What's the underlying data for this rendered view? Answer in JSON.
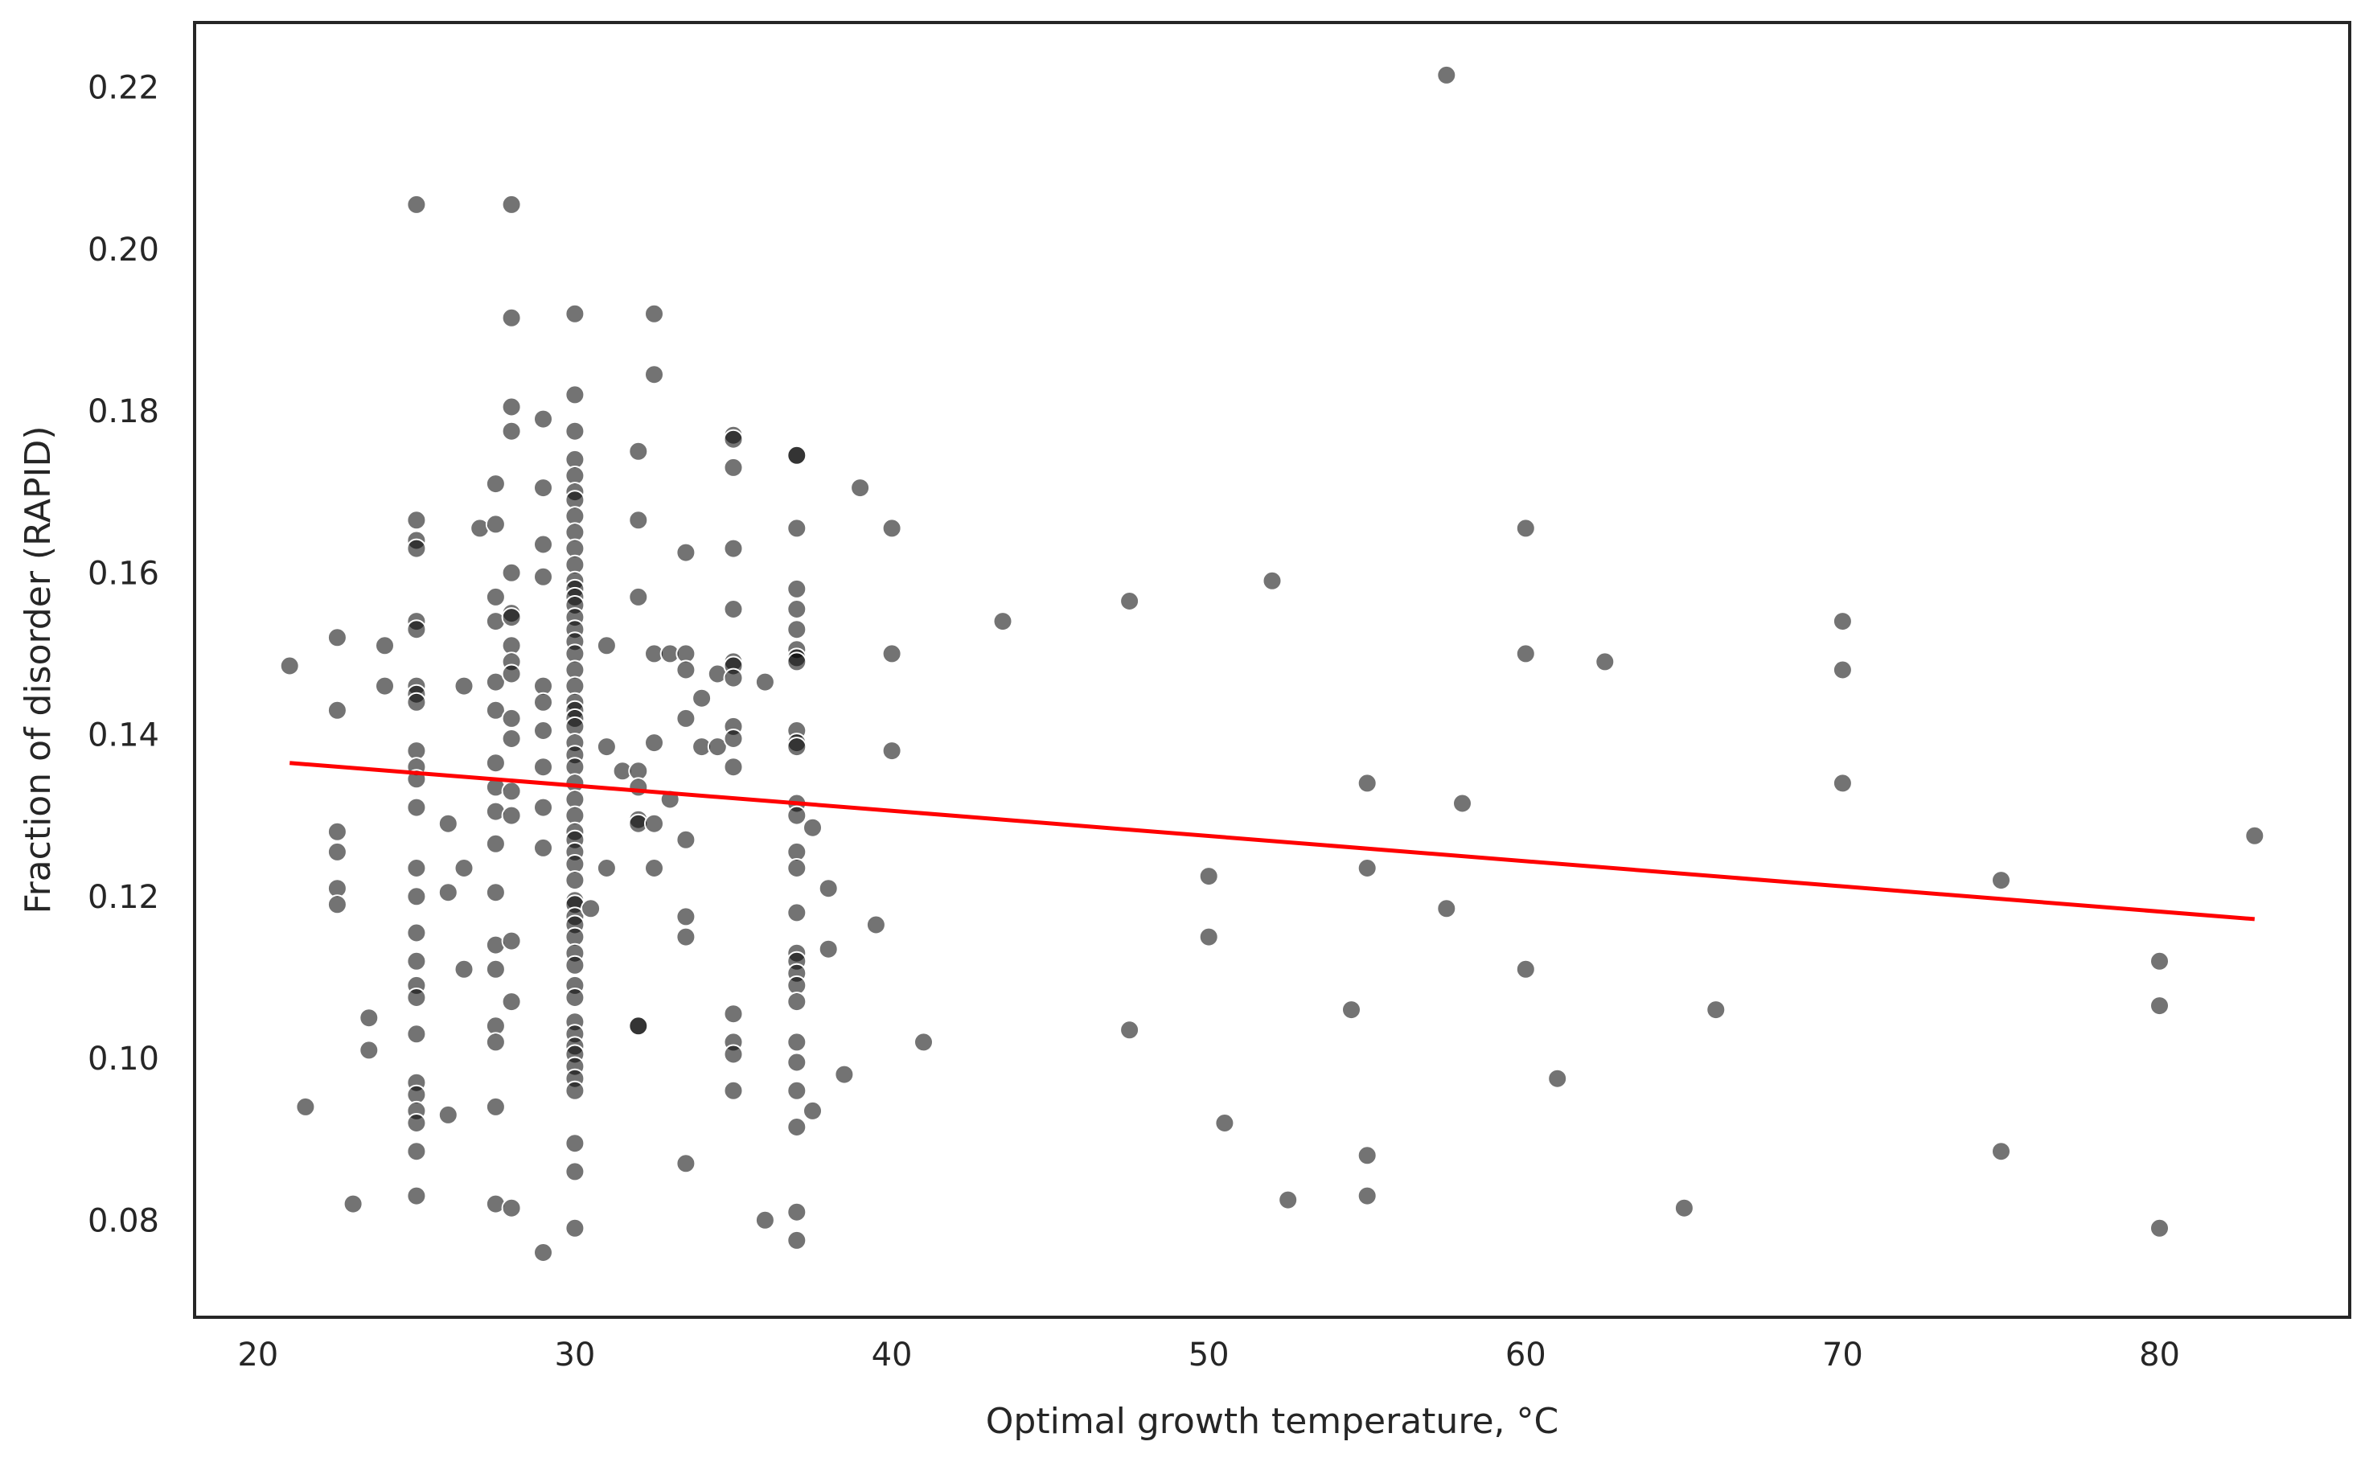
{
  "chart_data": {
    "type": "scatter",
    "title": "",
    "xlabel": "Optimal growth temperature, °C",
    "ylabel": "Fraction of disorder (RAPID)",
    "xlim": [
      18,
      86
    ],
    "ylim": [
      0.068,
      0.228
    ],
    "xticks": [
      20,
      30,
      40,
      50,
      60,
      70,
      80
    ],
    "yticks": [
      0.08,
      0.1,
      0.12,
      0.14,
      0.16,
      0.18,
      0.2,
      0.22
    ],
    "xtick_labels": [
      "20",
      "30",
      "40",
      "50",
      "60",
      "70",
      "80"
    ],
    "ytick_labels": [
      "0.08",
      "0.10",
      "0.12",
      "0.14",
      "0.16",
      "0.18",
      "0.20",
      "0.22"
    ],
    "grid": false,
    "legend": "none",
    "colors": {
      "points": "#000000",
      "regression": "#ff0000",
      "axes": "#262626"
    },
    "regression_line": {
      "x": [
        21,
        83
      ],
      "y": [
        0.1365,
        0.1172
      ]
    },
    "series": [
      {
        "points": [
          [
            21,
            0.1485
          ],
          [
            21.5,
            0.094
          ],
          [
            22.5,
            0.152
          ],
          [
            22.5,
            0.143
          ],
          [
            22.5,
            0.128
          ],
          [
            22.5,
            0.1255
          ],
          [
            22.5,
            0.121
          ],
          [
            22.5,
            0.119
          ],
          [
            23,
            0.082
          ],
          [
            23.5,
            0.105
          ],
          [
            23.5,
            0.101
          ],
          [
            24,
            0.151
          ],
          [
            24,
            0.146
          ],
          [
            25,
            0.2055
          ],
          [
            25,
            0.1665
          ],
          [
            25,
            0.164
          ],
          [
            25,
            0.163
          ],
          [
            25,
            0.154
          ],
          [
            25,
            0.153
          ],
          [
            25,
            0.146
          ],
          [
            25,
            0.145
          ],
          [
            25,
            0.144
          ],
          [
            25,
            0.138
          ],
          [
            25,
            0.136
          ],
          [
            25,
            0.1345
          ],
          [
            25,
            0.131
          ],
          [
            25,
            0.1235
          ],
          [
            25,
            0.12
          ],
          [
            25,
            0.1155
          ],
          [
            25,
            0.112
          ],
          [
            25,
            0.109
          ],
          [
            25,
            0.1075
          ],
          [
            25,
            0.103
          ],
          [
            25,
            0.097
          ],
          [
            25,
            0.0955
          ],
          [
            25,
            0.0935
          ],
          [
            25,
            0.092
          ],
          [
            25,
            0.0885
          ],
          [
            25,
            0.083
          ],
          [
            26,
            0.129
          ],
          [
            26,
            0.1205
          ],
          [
            26,
            0.093
          ],
          [
            26.5,
            0.146
          ],
          [
            26.5,
            0.1235
          ],
          [
            26.5,
            0.111
          ],
          [
            27,
            0.1655
          ],
          [
            27.5,
            0.171
          ],
          [
            27.5,
            0.166
          ],
          [
            27.5,
            0.157
          ],
          [
            27.5,
            0.154
          ],
          [
            27.5,
            0.1465
          ],
          [
            27.5,
            0.143
          ],
          [
            27.5,
            0.1365
          ],
          [
            27.5,
            0.1335
          ],
          [
            27.5,
            0.1305
          ],
          [
            27.5,
            0.1265
          ],
          [
            27.5,
            0.1205
          ],
          [
            27.5,
            0.114
          ],
          [
            27.5,
            0.111
          ],
          [
            27.5,
            0.104
          ],
          [
            27.5,
            0.102
          ],
          [
            27.5,
            0.094
          ],
          [
            27.5,
            0.082
          ],
          [
            28,
            0.2055
          ],
          [
            28,
            0.1915
          ],
          [
            28,
            0.1805
          ],
          [
            28,
            0.1775
          ],
          [
            28,
            0.16
          ],
          [
            28,
            0.155
          ],
          [
            28,
            0.1545
          ],
          [
            28,
            0.151
          ],
          [
            28,
            0.149
          ],
          [
            28,
            0.1475
          ],
          [
            28,
            0.142
          ],
          [
            28,
            0.1395
          ],
          [
            28,
            0.133
          ],
          [
            28,
            0.13
          ],
          [
            28,
            0.1145
          ],
          [
            28,
            0.107
          ],
          [
            28,
            0.0815
          ],
          [
            29,
            0.179
          ],
          [
            29,
            0.1705
          ],
          [
            29,
            0.1635
          ],
          [
            29,
            0.1595
          ],
          [
            29,
            0.146
          ],
          [
            29,
            0.144
          ],
          [
            29,
            0.1405
          ],
          [
            29,
            0.136
          ],
          [
            29,
            0.131
          ],
          [
            29,
            0.126
          ],
          [
            29,
            0.076
          ],
          [
            30,
            0.192
          ],
          [
            30,
            0.182
          ],
          [
            30,
            0.1775
          ],
          [
            30,
            0.174
          ],
          [
            30,
            0.172
          ],
          [
            30,
            0.17
          ],
          [
            30,
            0.169
          ],
          [
            30,
            0.167
          ],
          [
            30,
            0.165
          ],
          [
            30,
            0.163
          ],
          [
            30,
            0.161
          ],
          [
            30,
            0.159
          ],
          [
            30,
            0.158
          ],
          [
            30,
            0.157
          ],
          [
            30,
            0.156
          ],
          [
            30,
            0.1545
          ],
          [
            30,
            0.153
          ],
          [
            30,
            0.1515
          ],
          [
            30,
            0.15
          ],
          [
            30,
            0.148
          ],
          [
            30,
            0.146
          ],
          [
            30,
            0.144
          ],
          [
            30,
            0.143
          ],
          [
            30,
            0.142
          ],
          [
            30,
            0.141
          ],
          [
            30,
            0.139
          ],
          [
            30,
            0.1375
          ],
          [
            30,
            0.136
          ],
          [
            30,
            0.134
          ],
          [
            30,
            0.132
          ],
          [
            30,
            0.13
          ],
          [
            30,
            0.128
          ],
          [
            30,
            0.127
          ],
          [
            30,
            0.1255
          ],
          [
            30,
            0.124
          ],
          [
            30,
            0.122
          ],
          [
            30,
            0.1195
          ],
          [
            30,
            0.119
          ],
          [
            30,
            0.1175
          ],
          [
            30,
            0.1165
          ],
          [
            30,
            0.115
          ],
          [
            30,
            0.113
          ],
          [
            30,
            0.1115
          ],
          [
            30,
            0.109
          ],
          [
            30,
            0.1075
          ],
          [
            30,
            0.1045
          ],
          [
            30,
            0.103
          ],
          [
            30,
            0.1015
          ],
          [
            30,
            0.1005
          ],
          [
            30,
            0.099
          ],
          [
            30,
            0.0975
          ],
          [
            30,
            0.096
          ],
          [
            30,
            0.0895
          ],
          [
            30,
            0.086
          ],
          [
            30,
            0.079
          ],
          [
            30.5,
            0.1185
          ],
          [
            31,
            0.151
          ],
          [
            31,
            0.1385
          ],
          [
            31,
            0.1235
          ],
          [
            31.5,
            0.1355
          ],
          [
            32,
            0.175
          ],
          [
            32,
            0.1665
          ],
          [
            32,
            0.157
          ],
          [
            32,
            0.1355
          ],
          [
            32,
            0.1335
          ],
          [
            32,
            0.1295
          ],
          [
            32,
            0.129
          ],
          [
            32,
            0.104
          ],
          [
            32,
            0.104
          ],
          [
            32.5,
            0.192
          ],
          [
            32.5,
            0.1845
          ],
          [
            32.5,
            0.15
          ],
          [
            32.5,
            0.139
          ],
          [
            32.5,
            0.129
          ],
          [
            32.5,
            0.1235
          ],
          [
            33,
            0.15
          ],
          [
            33,
            0.132
          ],
          [
            33.5,
            0.1625
          ],
          [
            33.5,
            0.15
          ],
          [
            33.5,
            0.148
          ],
          [
            33.5,
            0.142
          ],
          [
            33.5,
            0.127
          ],
          [
            33.5,
            0.1175
          ],
          [
            33.5,
            0.115
          ],
          [
            33.5,
            0.087
          ],
          [
            34,
            0.1385
          ],
          [
            34,
            0.1445
          ],
          [
            34.5,
            0.1475
          ],
          [
            34.5,
            0.1385
          ],
          [
            35,
            0.177
          ],
          [
            35,
            0.1765
          ],
          [
            35,
            0.173
          ],
          [
            35,
            0.163
          ],
          [
            35,
            0.1555
          ],
          [
            35,
            0.149
          ],
          [
            35,
            0.1485
          ],
          [
            35,
            0.147
          ],
          [
            35,
            0.141
          ],
          [
            35,
            0.1395
          ],
          [
            35,
            0.136
          ],
          [
            35,
            0.1055
          ],
          [
            35,
            0.102
          ],
          [
            35,
            0.1005
          ],
          [
            35,
            0.096
          ],
          [
            36,
            0.1465
          ],
          [
            36,
            0.08
          ],
          [
            37,
            0.1745
          ],
          [
            37,
            0.1745
          ],
          [
            37,
            0.1655
          ],
          [
            37,
            0.158
          ],
          [
            37,
            0.1555
          ],
          [
            37,
            0.153
          ],
          [
            37,
            0.1505
          ],
          [
            37,
            0.1495
          ],
          [
            37,
            0.149
          ],
          [
            37,
            0.1405
          ],
          [
            37,
            0.139
          ],
          [
            37,
            0.1385
          ],
          [
            37,
            0.1315
          ],
          [
            37,
            0.13
          ],
          [
            37,
            0.1255
          ],
          [
            37,
            0.1235
          ],
          [
            37,
            0.118
          ],
          [
            37,
            0.113
          ],
          [
            37,
            0.112
          ],
          [
            37,
            0.1105
          ],
          [
            37,
            0.109
          ],
          [
            37,
            0.107
          ],
          [
            37,
            0.102
          ],
          [
            37,
            0.0995
          ],
          [
            37,
            0.096
          ],
          [
            37,
            0.0915
          ],
          [
            37,
            0.081
          ],
          [
            37,
            0.0775
          ],
          [
            37.5,
            0.1285
          ],
          [
            37.5,
            0.0935
          ],
          [
            38,
            0.121
          ],
          [
            38,
            0.1135
          ],
          [
            38.5,
            0.098
          ],
          [
            39,
            0.1705
          ],
          [
            39.5,
            0.1165
          ],
          [
            40,
            0.1655
          ],
          [
            40,
            0.15
          ],
          [
            40,
            0.138
          ],
          [
            41,
            0.102
          ],
          [
            43.5,
            0.154
          ],
          [
            47.5,
            0.1565
          ],
          [
            47.5,
            0.1035
          ],
          [
            50,
            0.1225
          ],
          [
            50,
            0.115
          ],
          [
            50.5,
            0.092
          ],
          [
            52,
            0.159
          ],
          [
            52.5,
            0.0825
          ],
          [
            54.5,
            0.106
          ],
          [
            55,
            0.134
          ],
          [
            55,
            0.1235
          ],
          [
            55,
            0.088
          ],
          [
            55,
            0.083
          ],
          [
            57.5,
            0.2215
          ],
          [
            57.5,
            0.1185
          ],
          [
            58,
            0.1315
          ],
          [
            60,
            0.1655
          ],
          [
            60,
            0.15
          ],
          [
            60,
            0.111
          ],
          [
            61,
            0.0975
          ],
          [
            62.5,
            0.149
          ],
          [
            65,
            0.0815
          ],
          [
            66,
            0.106
          ],
          [
            70,
            0.154
          ],
          [
            70,
            0.148
          ],
          [
            70,
            0.134
          ],
          [
            75,
            0.122
          ],
          [
            75,
            0.0885
          ],
          [
            80,
            0.112
          ],
          [
            80,
            0.1065
          ],
          [
            80,
            0.079
          ],
          [
            83,
            0.1275
          ]
        ]
      }
    ]
  }
}
